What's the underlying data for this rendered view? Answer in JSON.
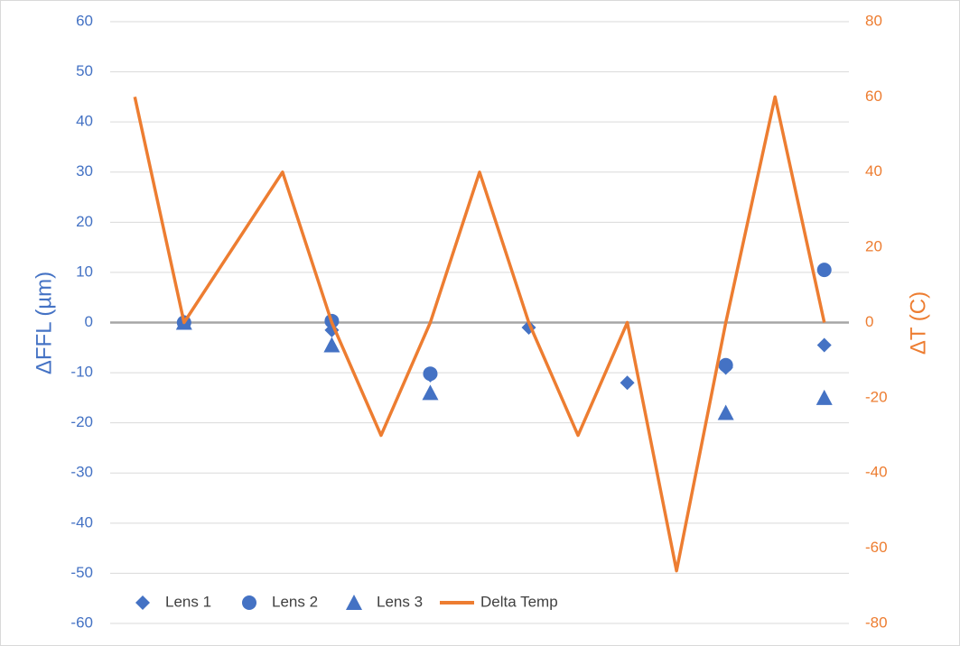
{
  "chart_data": {
    "type": "combo",
    "categories": [
      null,
      null,
      null,
      null,
      null,
      null,
      null,
      null,
      null,
      null,
      null,
      null,
      null,
      null,
      null
    ],
    "ylabel": "ΔFFL (µm)",
    "y2label": "ΔT (C)",
    "ylim": [
      -60,
      60
    ],
    "yticks": [
      -60,
      -50,
      -40,
      -30,
      -20,
      -10,
      0,
      10,
      20,
      30,
      40,
      50,
      60
    ],
    "y2lim": [
      -80,
      80
    ],
    "y2ticks": [
      -80,
      -60,
      -40,
      -20,
      0,
      20,
      40,
      60,
      80
    ],
    "grid": true,
    "legend": "bottom",
    "series": [
      {
        "name": "Lens 1",
        "kind": "scatter",
        "marker": "diamond",
        "color": "#4472c4",
        "values": [
          null,
          0,
          null,
          null,
          -1.5,
          null,
          -10.5,
          null,
          -1,
          null,
          -12,
          null,
          -9,
          null,
          -4.5
        ]
      },
      {
        "name": "Lens 2",
        "kind": "scatter",
        "marker": "circle",
        "color": "#4472c4",
        "values": [
          null,
          0,
          null,
          null,
          0.3,
          null,
          -10.2,
          null,
          null,
          null,
          null,
          null,
          -8.5,
          null,
          10.5
        ]
      },
      {
        "name": "Lens 3",
        "kind": "scatter",
        "marker": "triangle",
        "color": "#4472c4",
        "values": [
          null,
          0,
          null,
          null,
          -4.5,
          null,
          -14,
          null,
          null,
          null,
          null,
          null,
          -18,
          null,
          -15
        ]
      },
      {
        "name": "Delta Temp",
        "kind": "line",
        "axis": "y2",
        "color": "#ed7d31",
        "values": [
          60,
          0,
          20,
          40,
          0,
          -30,
          0,
          40,
          0,
          -30,
          0,
          -66,
          0,
          60,
          0
        ]
      }
    ]
  }
}
